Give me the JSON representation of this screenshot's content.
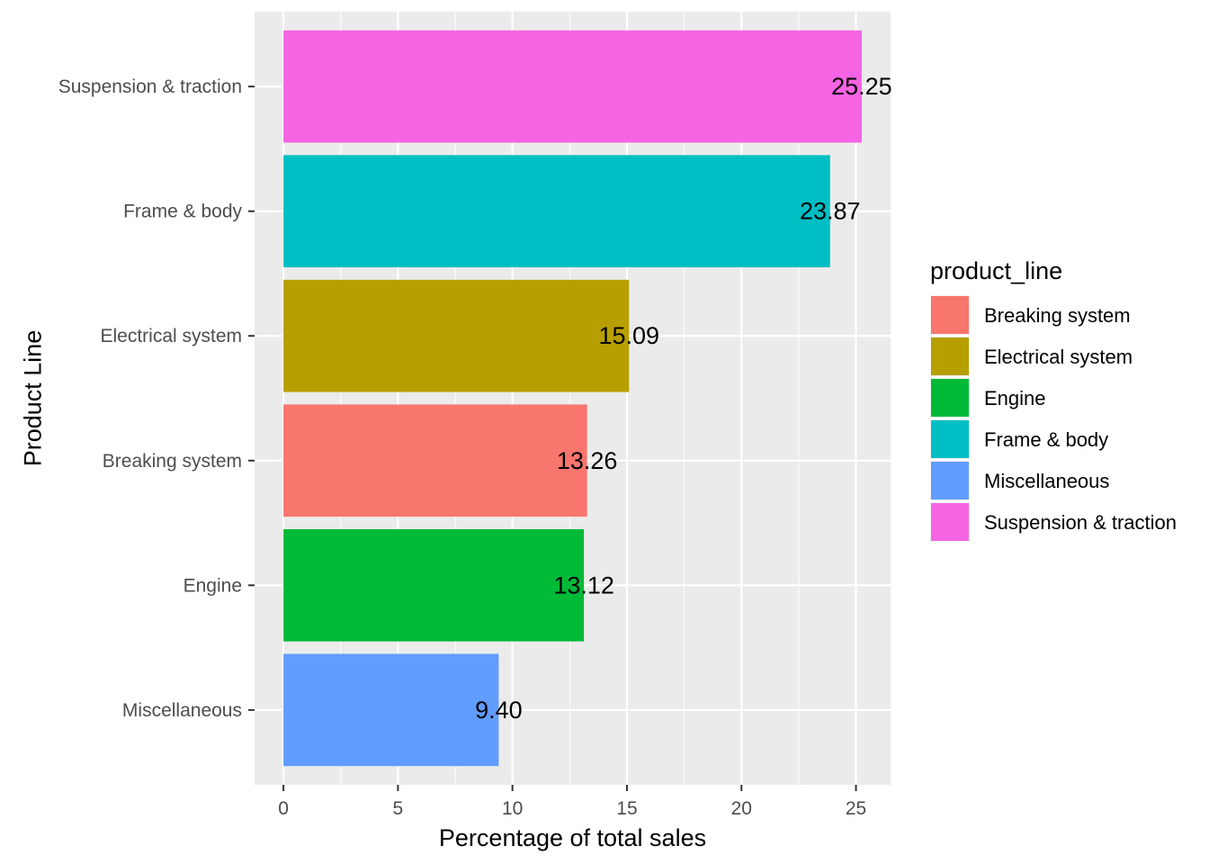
{
  "chart_data": {
    "type": "bar",
    "orientation": "horizontal",
    "xlabel": "Percentage of total sales",
    "ylabel": "Product Line",
    "xlim": [
      -1.26,
      26.51
    ],
    "x_ticks": [
      "0",
      "5",
      "10",
      "15",
      "20",
      "25"
    ],
    "x_tick_values": [
      0,
      5,
      10,
      15,
      20,
      25
    ],
    "grid": true,
    "legend_position": "right",
    "categories": [
      "Suspension & traction",
      "Frame & body",
      "Electrical system",
      "Breaking system",
      "Engine",
      "Miscellaneous"
    ],
    "values": [
      25.25,
      23.87,
      15.09,
      13.26,
      13.12,
      9.4
    ],
    "data_labels": [
      "25.25",
      "23.87",
      "15.09",
      "13.26",
      "13.12",
      "9.40"
    ],
    "bar_colors": [
      "#F564E3",
      "#00BFC4",
      "#B79F00",
      "#F8766D",
      "#00BA38",
      "#619CFF"
    ],
    "legend": {
      "title": "product_line",
      "entries": [
        {
          "label": "Breaking system",
          "color": "#F8766D"
        },
        {
          "label": "Electrical system",
          "color": "#B79F00"
        },
        {
          "label": "Engine",
          "color": "#00BA38"
        },
        {
          "label": "Frame & body",
          "color": "#00BFC4"
        },
        {
          "label": "Miscellaneous",
          "color": "#619CFF"
        },
        {
          "label": "Suspension & traction",
          "color": "#F564E3"
        }
      ]
    },
    "panel_background": "#EBEBEB",
    "grid_color": "#FFFFFF"
  }
}
